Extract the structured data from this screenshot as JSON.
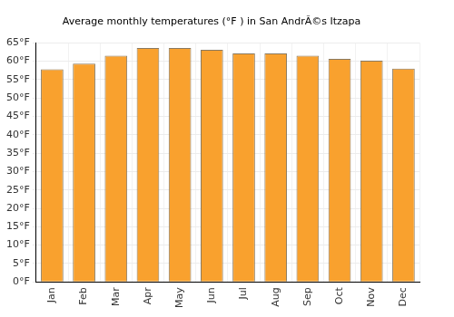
{
  "chart_data": {
    "type": "bar",
    "title": "Average monthly temperatures (°F ) in San AndrÃ©s Itzapa",
    "categories": [
      "Jan",
      "Feb",
      "Mar",
      "Apr",
      "May",
      "Jun",
      "Jul",
      "Aug",
      "Sep",
      "Oct",
      "Nov",
      "Dec"
    ],
    "values": [
      57.8,
      59.3,
      61.5,
      63.6,
      63.6,
      63.1,
      62.1,
      62.1,
      61.5,
      60.6,
      60.1,
      58.0
    ],
    "color": "#f9a12e",
    "ylim": [
      0,
      65
    ],
    "yticks": [
      {
        "value": 0,
        "label": "0°F"
      },
      {
        "value": 5,
        "label": "5°F"
      },
      {
        "value": 10,
        "label": "10°F"
      },
      {
        "value": 15,
        "label": "15°F"
      },
      {
        "value": 20,
        "label": "20°F"
      },
      {
        "value": 25,
        "label": "25°F"
      },
      {
        "value": 30,
        "label": "30°F"
      },
      {
        "value": 35,
        "label": "35°F"
      },
      {
        "value": 40,
        "label": "40°F"
      },
      {
        "value": 45,
        "label": "45°F"
      },
      {
        "value": 50,
        "label": "50°F"
      },
      {
        "value": 55,
        "label": "55°F"
      },
      {
        "value": 60,
        "label": "60°F"
      },
      {
        "value": 65,
        "label": "65°F"
      }
    ],
    "grid": true
  }
}
